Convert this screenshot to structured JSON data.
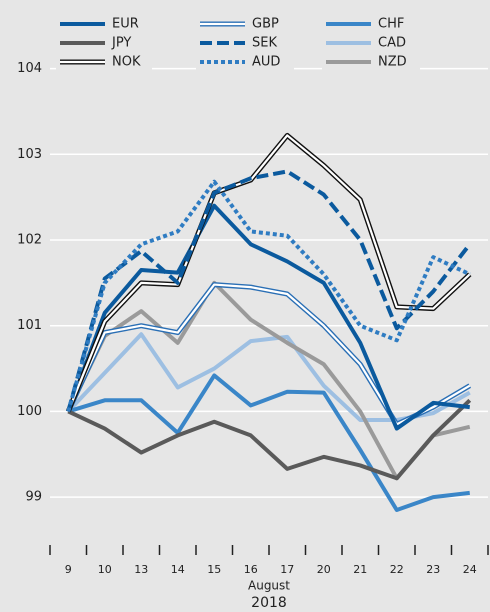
{
  "chart_data": {
    "type": "line",
    "categories": [
      "9",
      "10",
      "13",
      "14",
      "15",
      "16",
      "17",
      "20",
      "21",
      "22",
      "23",
      "24"
    ],
    "xlabel": [
      "August",
      "2018"
    ],
    "ylim": [
      98.5,
      104.8
    ],
    "yticks": [
      99,
      100,
      101,
      102,
      103,
      104
    ],
    "grid": true,
    "series": [
      {
        "name": "EUR",
        "color": "#0b5a9e",
        "line_style": "solid",
        "values": [
          100,
          101.15,
          101.65,
          101.62,
          102.4,
          101.95,
          101.75,
          101.5,
          100.8,
          99.8,
          100.1,
          100.05
        ]
      },
      {
        "name": "GBP",
        "color": "#2a6fb5",
        "line_style": "double",
        "values": [
          100,
          100.92,
          101.0,
          100.92,
          101.48,
          101.45,
          101.37,
          101.0,
          100.55,
          99.85,
          100.05,
          100.3
        ]
      },
      {
        "name": "CHF",
        "color": "#3a86c8",
        "line_style": "solid",
        "values": [
          100,
          100.13,
          100.13,
          99.75,
          100.42,
          100.07,
          100.23,
          100.22,
          99.55,
          98.85,
          99.0,
          99.05
        ]
      },
      {
        "name": "JPY",
        "color": "#5a5a5a",
        "line_style": "solid",
        "values": [
          100,
          99.8,
          99.52,
          99.72,
          99.88,
          99.72,
          99.33,
          99.47,
          99.37,
          99.22,
          99.72,
          100.13
        ]
      },
      {
        "name": "SEK",
        "color": "#0b5a9e",
        "line_style": "dashed",
        "values": [
          100,
          101.55,
          101.87,
          101.5,
          102.55,
          102.72,
          102.8,
          102.53,
          102.0,
          100.97,
          101.4,
          101.95
        ]
      },
      {
        "name": "CAD",
        "color": "#9dbfe2",
        "line_style": "solid",
        "values": [
          100,
          100.45,
          100.9,
          100.28,
          100.5,
          100.82,
          100.87,
          100.3,
          99.9,
          99.9,
          99.98,
          100.22
        ]
      },
      {
        "name": "NOK",
        "color": "#111111",
        "line_style": "double",
        "values": [
          100,
          101.05,
          101.5,
          101.48,
          102.55,
          102.7,
          103.22,
          102.87,
          102.47,
          101.22,
          101.2,
          101.6
        ]
      },
      {
        "name": "AUD",
        "color": "#2f7cc2",
        "line_style": "dotted",
        "values": [
          100,
          101.5,
          101.95,
          102.1,
          102.68,
          102.1,
          102.05,
          101.6,
          101.0,
          100.83,
          101.8,
          101.6
        ]
      },
      {
        "name": "NZD",
        "color": "#9a9a9a",
        "line_style": "solid",
        "values": [
          100,
          100.88,
          101.17,
          100.8,
          101.5,
          101.07,
          100.8,
          100.55,
          100.0,
          99.22,
          99.72,
          99.82
        ]
      }
    ]
  }
}
